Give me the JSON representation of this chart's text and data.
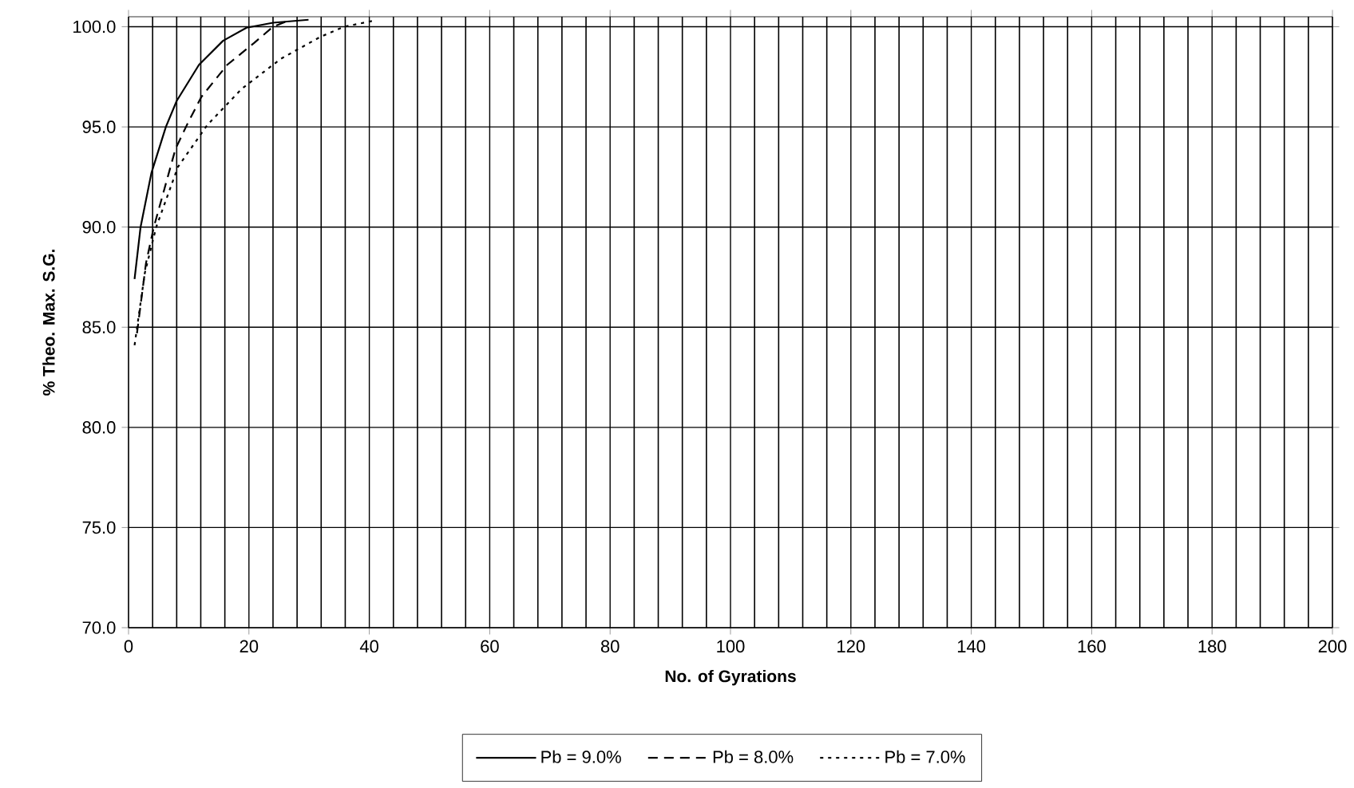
{
  "chart_data": {
    "type": "line",
    "xlabel": "No. of Gyrations",
    "ylabel": "% Theo. Max. S.G.",
    "xlim": [
      0,
      200
    ],
    "ylim": [
      70,
      100.5
    ],
    "xticks": [
      0,
      20,
      40,
      60,
      80,
      100,
      120,
      140,
      160,
      180,
      200
    ],
    "yticks": [
      {
        "value": 70,
        "label": "70.0"
      },
      {
        "value": 75,
        "label": "75.0"
      },
      {
        "value": 80,
        "label": "80.0"
      },
      {
        "value": 85,
        "label": "85.0"
      },
      {
        "value": 90,
        "label": "90.0"
      },
      {
        "value": 95,
        "label": "95.0"
      },
      {
        "value": 100,
        "label": "100.0"
      }
    ],
    "grid": true,
    "legend": "bottom",
    "marker": "none",
    "series": [
      {
        "name": "Pb = 9.0%",
        "color": "#000000",
        "line_style": "solid",
        "x": [
          1,
          2,
          3.8,
          6.2,
          8,
          11.7,
          15.7,
          19.6,
          24,
          29.9
        ],
        "values": [
          87.4,
          90.0,
          92.7,
          95.0,
          96.3,
          98.1,
          99.3,
          99.95,
          100.2,
          100.35
        ]
      },
      {
        "name": "Pb = 8.0%",
        "color": "#000000",
        "line_style": "dashed",
        "x": [
          1.4,
          2.9,
          4.2,
          7.8,
          9.7,
          12.1,
          16.4,
          20.9,
          24,
          26.2
        ],
        "values": [
          84.7,
          88.2,
          90.0,
          93.9,
          95.1,
          96.5,
          98.1,
          99.2,
          100.0,
          100.26
        ]
      },
      {
        "name": "Pb = 7.0%",
        "color": "#000000",
        "line_style": "dotted",
        "x": [
          1,
          2.7,
          4.6,
          8.2,
          13.1,
          18.8,
          25.3,
          31.9,
          35.8,
          40.7
        ],
        "values": [
          84.1,
          87.7,
          90.0,
          93.0,
          95.1,
          96.9,
          98.4,
          99.5,
          100.0,
          100.3
        ]
      }
    ]
  }
}
